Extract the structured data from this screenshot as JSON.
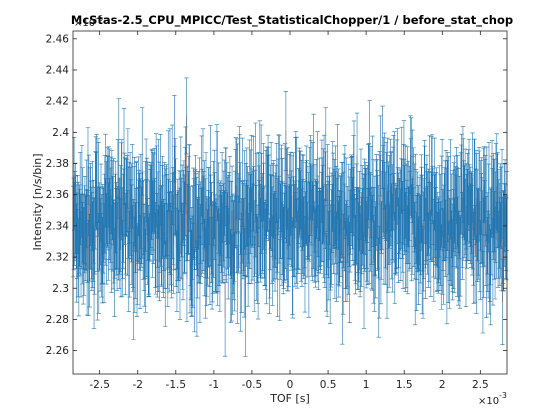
{
  "chart_data": {
    "type": "line",
    "title": "McStas-2.5_CPU_MPICC/Test_StatisticalChopper/1 / before_stat_chop",
    "xlabel": "TOF [s]",
    "ylabel": "Intensity [n/s/bin]",
    "x_exponent_label": "×10",
    "x_exponent": "-3",
    "y_exponent_label": "×10",
    "y_exponent": "-6",
    "xlim": [
      -2.85,
      2.85
    ],
    "ylim": [
      2.245,
      2.465
    ],
    "x_ticks": [
      -2.5,
      -2,
      -1.5,
      -1,
      -0.5,
      0,
      0.5,
      1,
      1.5,
      2,
      2.5
    ],
    "x_tick_labels": [
      "-2.5",
      "-2",
      "-1.5",
      "-1",
      "-0.5",
      "0",
      "0.5",
      "1",
      "1.5",
      "2",
      "2.5"
    ],
    "y_ticks": [
      2.26,
      2.28,
      2.3,
      2.32,
      2.34,
      2.36,
      2.38,
      2.4,
      2.42,
      2.44,
      2.46
    ],
    "y_tick_labels": [
      "2.26",
      "2.28",
      "2.3",
      "2.32",
      "2.34",
      "2.36",
      "2.38",
      "2.4",
      "2.42",
      "2.44",
      "2.46"
    ],
    "grid": false,
    "colors": {
      "errorbar": "#1f77b4",
      "line": "#d9825b"
    },
    "series": [
      {
        "values_summary": "noisy counts around 2.34 with error bars",
        "n_points": 1000,
        "x_range": [
          -2.85,
          2.85
        ],
        "mean": 2.342,
        "sd": 0.018,
        "err_mean": 0.028
      }
    ]
  }
}
